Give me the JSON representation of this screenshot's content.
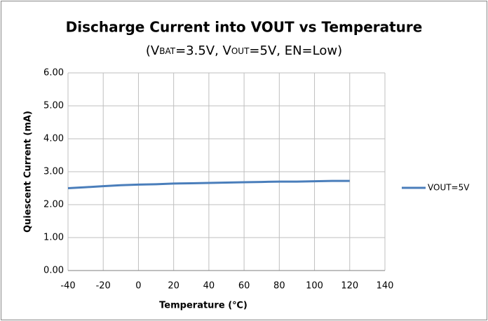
{
  "chart_data": {
    "type": "line",
    "title": "Discharge Current into VOUT vs Temperature",
    "subtitle": [
      "(V",
      "BAT",
      "=3.5V, V",
      "OUT",
      "=5V, EN=Low)"
    ],
    "xlabel": "Temperature (℃)",
    "ylabel": "Quiescent Current (mA)",
    "x": [
      -40,
      -30,
      -20,
      -10,
      0,
      10,
      20,
      30,
      40,
      50,
      60,
      70,
      80,
      90,
      100,
      110,
      120
    ],
    "series": [
      {
        "name": "VOUT=5V",
        "color": "#4a7ebb",
        "values": [
          2.5,
          2.53,
          2.56,
          2.59,
          2.61,
          2.62,
          2.64,
          2.65,
          2.66,
          2.67,
          2.68,
          2.69,
          2.7,
          2.7,
          2.71,
          2.72,
          2.72
        ]
      }
    ],
    "xlim": [
      -40,
      140
    ],
    "xticks": [
      -40,
      -20,
      0,
      20,
      40,
      60,
      80,
      100,
      120,
      140
    ],
    "ylim": [
      0,
      6
    ],
    "yticks": [
      {
        "value": 0,
        "label": "0.00"
      },
      {
        "value": 1,
        "label": "1.00"
      },
      {
        "value": 2,
        "label": "2.00"
      },
      {
        "value": 3,
        "label": "3.00"
      },
      {
        "value": 4,
        "label": "4.00"
      },
      {
        "value": 5,
        "label": "5.00"
      },
      {
        "value": 6,
        "label": "6.00"
      }
    ],
    "grid": true,
    "legend": "right"
  }
}
